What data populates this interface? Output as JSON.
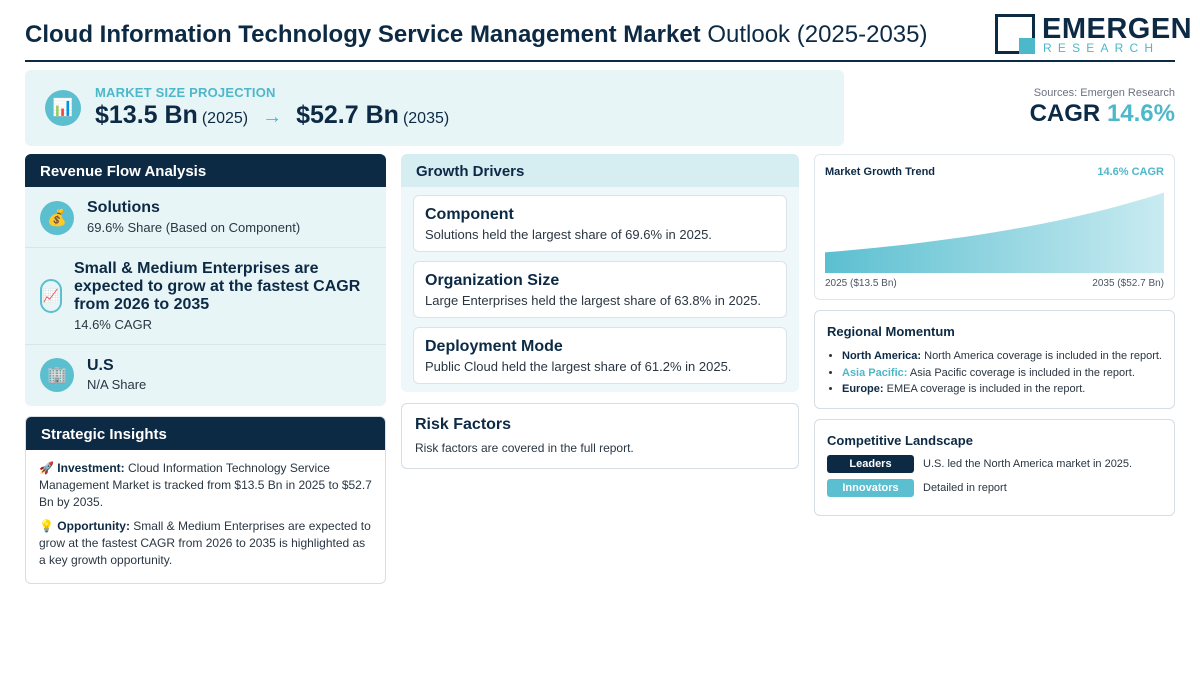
{
  "header": {
    "title_bold": "Cloud Information Technology Service Management Market",
    "title_light": "Outlook (2025-2035)",
    "logo_word": "EMERGEN",
    "logo_sub": "RESEARCH"
  },
  "market_size": {
    "icon": "bar-chart-icon",
    "label": "MARKET SIZE PROJECTION",
    "start_value": "$13.5 Bn",
    "start_year": "(2025)",
    "arrow": "→",
    "end_value": "$52.7 Bn",
    "end_year": "(2035)"
  },
  "sources": "Sources: Emergen Research",
  "cagr": {
    "label": "CAGR",
    "value": "14.6%"
  },
  "revenue_flow": {
    "title": "Revenue Flow Analysis",
    "items": [
      {
        "icon": "money-bag-icon",
        "title": "Solutions",
        "sub": "69.6% Share (Based on Component)"
      },
      {
        "icon": "trend-up-icon",
        "title": "Small & Medium Enterprises are expected to grow at the fastest CAGR from 2026 to 2035",
        "sub": "14.6% CAGR"
      },
      {
        "icon": "building-icon",
        "title": "U.S",
        "sub": "N/A Share"
      }
    ]
  },
  "strategic_insights": {
    "title": "Strategic Insights",
    "investment_label": "Investment:",
    "investment_text": "Cloud Information Technology Service Management Market is tracked from $13.5 Bn in 2025 to $52.7 Bn by 2035.",
    "opportunity_label": "Opportunity:",
    "opportunity_text": "Small & Medium Enterprises are expected to grow at the fastest CAGR from 2026 to 2035 is highlighted as a key growth opportunity."
  },
  "growth_drivers": {
    "title": "Growth Drivers",
    "cards": [
      {
        "title": "Component",
        "text": "Solutions held the largest share of 69.6% in 2025."
      },
      {
        "title": "Organization Size",
        "text": "Large Enterprises held the largest share of 63.8% in 2025."
      },
      {
        "title": "Deployment Mode",
        "text": "Public Cloud held the largest share of 61.2% in 2025."
      }
    ]
  },
  "risk_factors": {
    "title": "Risk Factors",
    "text": "Risk factors are covered in the full report."
  },
  "market_growth_trend": {
    "title": "Market Growth Trend",
    "cagr_label": "14.6% CAGR",
    "x_left": "2025 ($13.5 Bn)",
    "x_right": "2035 ($52.7 Bn)"
  },
  "chart_data": {
    "type": "area",
    "title": "Market Growth Trend",
    "x": [
      2025,
      2035
    ],
    "series": [
      {
        "values": [
          13.5,
          52.7
        ]
      }
    ],
    "x_tick_labels": [
      "2025 ($13.5 Bn)",
      "2035 ($52.7 Bn)"
    ],
    "annotation": "14.6% CAGR",
    "grid": false
  },
  "regional_momentum": {
    "title": "Regional Momentum",
    "items": [
      {
        "region": "North America:",
        "text": "North America coverage is included in the report."
      },
      {
        "region": "Asia Pacific:",
        "text": "Asia Pacific coverage is included in the report."
      },
      {
        "region": "Europe:",
        "text": "EMEA coverage is included in the report."
      }
    ]
  },
  "competitive_landscape": {
    "title": "Competitive Landscape",
    "leaders_label": "Leaders",
    "leaders_text": "U.S. led the North America market in 2025.",
    "innovators_label": "Innovators",
    "innovators_text": "Detailed in report"
  },
  "colors": {
    "navy": "#0d2a45",
    "teal": "#4db8c9",
    "light_teal_bg": "#e8f5f7"
  }
}
